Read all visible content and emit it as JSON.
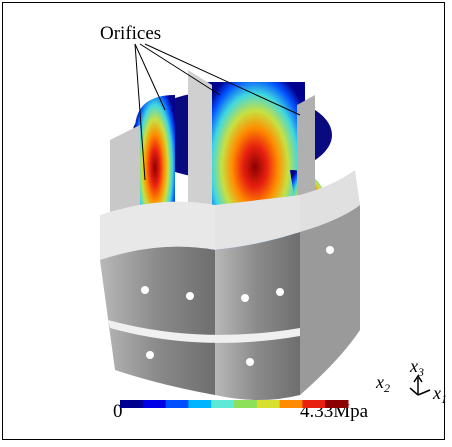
{
  "figure": {
    "callout": "Orifices",
    "colorbar": {
      "min_label": "0",
      "max_label": "4.33Mpa",
      "colors": [
        "#00008f",
        "#0000e6",
        "#0050ff",
        "#00b4ff",
        "#5ee8d8",
        "#8ce05a",
        "#d7e030",
        "#ff8c00",
        "#e82010",
        "#8b0000"
      ]
    },
    "axes": [
      {
        "letter": "x",
        "index": "3"
      },
      {
        "letter": "x",
        "index": "2"
      },
      {
        "letter": "x",
        "index": "1"
      }
    ]
  }
}
